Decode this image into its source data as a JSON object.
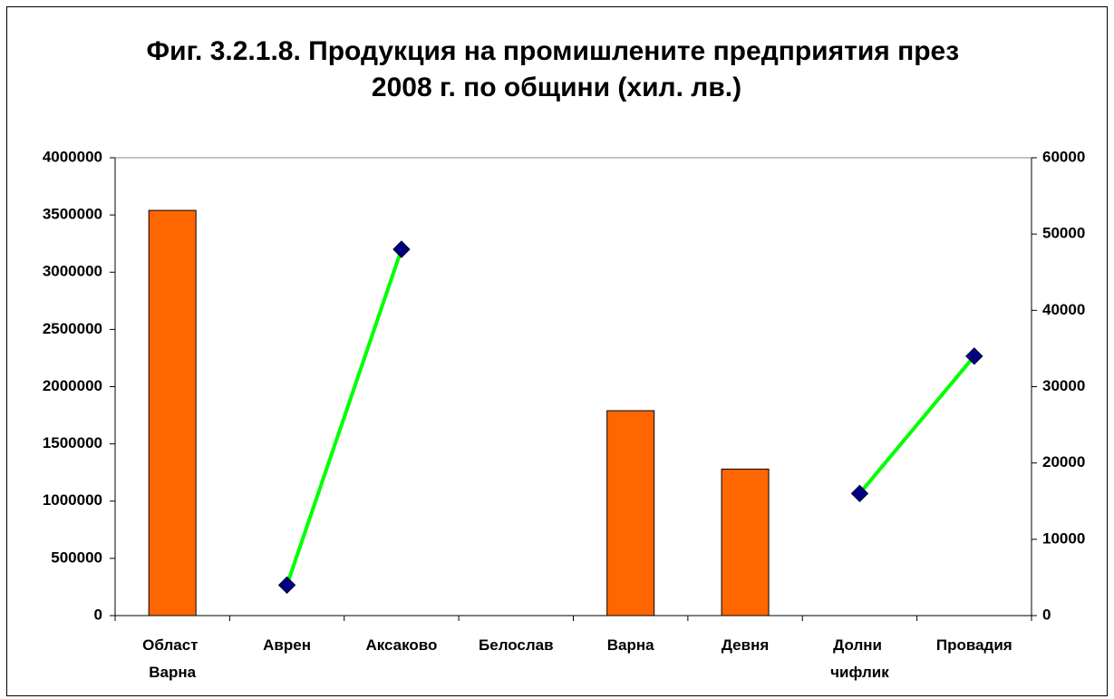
{
  "chart_data": {
    "type": "bar-line",
    "title": "Фиг. 3.2.1.8. Продукция на промишлените предприятия през 2008 г. по общини (хил. лв.)",
    "categories": [
      "Област Варна",
      "Аврен",
      "Аксаково",
      "Белослав",
      "Варна",
      "Девня",
      "Долни чифлик",
      "Провадия"
    ],
    "series": [
      {
        "type": "bar",
        "color": "#ff6600",
        "values": [
          3540000,
          null,
          null,
          null,
          1790000,
          1280000,
          null,
          null
        ]
      },
      {
        "type": "line",
        "color": "#00ff00",
        "marker_color": "#000080",
        "axis": "y2",
        "values": [
          null,
          4000,
          48000,
          null,
          null,
          null,
          16000,
          34000
        ]
      }
    ],
    "ylim": [
      0,
      4000000
    ],
    "yticks": [
      0,
      500000,
      1000000,
      1500000,
      2000000,
      2500000,
      3000000,
      3500000,
      4000000
    ],
    "y2lim": [
      0,
      60000
    ],
    "y2ticks": [
      0,
      10000,
      20000,
      30000,
      40000,
      50000,
      60000
    ],
    "grid": false
  }
}
